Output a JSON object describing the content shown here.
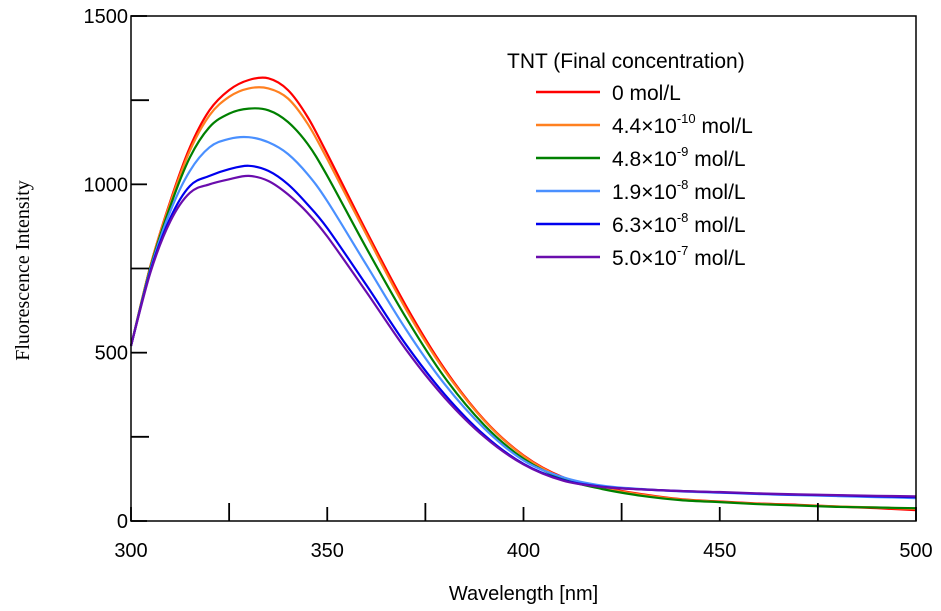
{
  "chart_data": {
    "type": "line",
    "title": "",
    "xlabel": "Wavelength [nm]",
    "ylabel": "Fluorescence Intensity",
    "xlim": [
      300,
      500
    ],
    "ylim": [
      0,
      1500
    ],
    "x_ticks": [
      300,
      350,
      400,
      450,
      500
    ],
    "x_tick_labels": [
      "300",
      "350",
      "400",
      "450",
      "500"
    ],
    "y_ticks": [
      0,
      500,
      1000,
      1500
    ],
    "y_tick_labels": [
      "0",
      "500",
      "1000",
      "1500"
    ],
    "x_minor_step": 25,
    "y_minor_step": 250,
    "grid": false,
    "legend": {
      "title": "TNT (Final concentration)",
      "placement": "top-right"
    },
    "x": [
      300,
      305,
      310,
      315,
      320,
      325,
      330,
      335,
      340,
      345,
      350,
      360,
      370,
      380,
      390,
      400,
      410,
      420,
      430,
      440,
      450,
      460,
      470,
      480,
      490,
      500
    ],
    "series": [
      {
        "name": "0 mol/L",
        "label_main": "0 mol/L",
        "label_sup": "",
        "label_tail": "",
        "color": "#ff0000",
        "values": [
          520,
          760,
          950,
          1110,
          1220,
          1280,
          1310,
          1315,
          1280,
          1200,
          1090,
          860,
          640,
          450,
          300,
          195,
          130,
          100,
          80,
          65,
          58,
          52,
          48,
          43,
          38,
          32
        ]
      },
      {
        "name": "4.4×10-10 mol/L",
        "label_main": "4.4×10",
        "label_sup": "-10",
        "label_tail": " mol/L",
        "color": "#ff8020",
        "values": [
          520,
          760,
          945,
          1100,
          1205,
          1260,
          1285,
          1285,
          1255,
          1180,
          1075,
          850,
          630,
          445,
          298,
          193,
          128,
          98,
          78,
          64,
          57,
          51,
          47,
          43,
          40,
          36
        ]
      },
      {
        "name": "4.8×10-9 mol/L",
        "label_main": "4.8×10",
        "label_sup": "-9",
        "label_tail": " mol/L",
        "color": "#008000",
        "values": [
          520,
          755,
          935,
          1080,
          1170,
          1210,
          1225,
          1220,
          1185,
          1120,
          1025,
          810,
          605,
          425,
          285,
          185,
          125,
          95,
          75,
          62,
          56,
          50,
          46,
          42,
          40,
          38
        ]
      },
      {
        "name": "1.9×10-8 mol/L",
        "label_main": "1.9×10",
        "label_sup": "-8",
        "label_tail": " mol/L",
        "color": "#4a90ff",
        "values": [
          520,
          750,
          920,
          1040,
          1110,
          1135,
          1140,
          1125,
          1090,
          1030,
          950,
          760,
          570,
          405,
          275,
          180,
          130,
          105,
          95,
          88,
          84,
          80,
          77,
          74,
          71,
          68
        ]
      },
      {
        "name": "6.3×10-8 mol/L",
        "label_main": "6.3×10",
        "label_sup": "-8",
        "label_tail": " mol/L",
        "color": "#0000ee",
        "values": [
          520,
          745,
          900,
          995,
          1025,
          1045,
          1055,
          1040,
          1000,
          940,
          870,
          700,
          525,
          375,
          255,
          170,
          122,
          102,
          94,
          89,
          85,
          81,
          78,
          76,
          73,
          71
        ]
      },
      {
        "name": "5.0×10-7 mol/L",
        "label_main": "5.0×10",
        "label_sup": "-7",
        "label_tail": " mol/L",
        "color": "#6a0dad",
        "values": [
          520,
          740,
          890,
          975,
          1000,
          1015,
          1025,
          1010,
          970,
          915,
          845,
          680,
          510,
          365,
          250,
          168,
          120,
          101,
          94,
          89,
          86,
          82,
          79,
          77,
          75,
          73
        ]
      }
    ]
  }
}
